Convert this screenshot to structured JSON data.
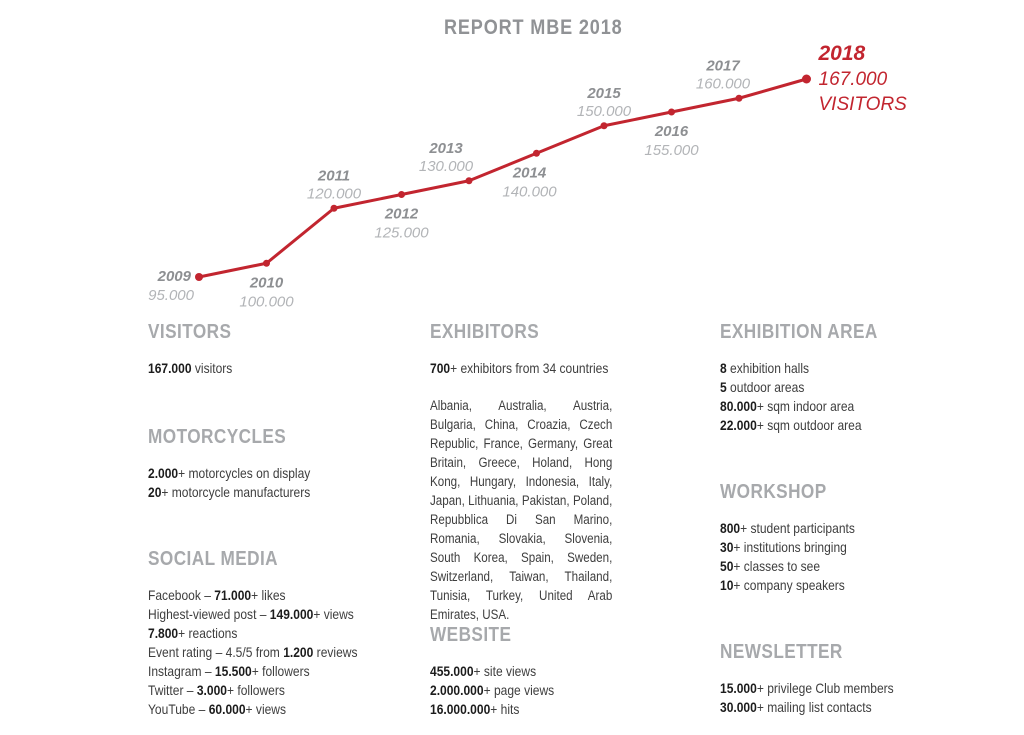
{
  "title": "REPORT MBE 2018",
  "colors": {
    "red": "#c2252f",
    "title_gray": "#909295",
    "heading_gray": "#a7a9ac",
    "year_gray": "#8d8f92",
    "value_gray": "#b2b4b7",
    "text": "#3e3e3e",
    "bold_text": "#1c1c1c"
  },
  "chart_data": {
    "type": "line",
    "title": "REPORT MBE 2018",
    "x": [
      2009,
      2010,
      2011,
      2012,
      2013,
      2014,
      2015,
      2016,
      2017,
      2018
    ],
    "values": [
      95000,
      100000,
      120000,
      125000,
      130000,
      140000,
      150000,
      155000,
      160000,
      167000
    ],
    "ylim": [
      95000,
      167000
    ],
    "grid": false,
    "legend": false,
    "line_color": "#c2252f",
    "points": [
      {
        "year": "2009",
        "label": "95.000",
        "placement": "left"
      },
      {
        "year": "2010",
        "label": "100.000",
        "placement": "below"
      },
      {
        "year": "2011",
        "label": "120.000",
        "placement": "above"
      },
      {
        "year": "2012",
        "label": "125.000",
        "placement": "below"
      },
      {
        "year": "2013",
        "label": "130.000",
        "placement": "above",
        "dx": -23
      },
      {
        "year": "2014",
        "label": "140.000",
        "placement": "below",
        "dx": -7
      },
      {
        "year": "2015",
        "label": "150.000",
        "placement": "above"
      },
      {
        "year": "2016",
        "label": "155.000",
        "placement": "below"
      },
      {
        "year": "2017",
        "label": "160.000",
        "placement": "above",
        "dx": -16
      },
      {
        "year": "2018",
        "label": "167.000",
        "sublabel": "VISITORS",
        "placement": "right",
        "highlight": true
      }
    ]
  },
  "sections": {
    "visitors": {
      "heading": "VISITORS",
      "lines": [
        [
          {
            "t": "167.000",
            "b": true
          },
          {
            "t": " visitors",
            "b": false
          }
        ]
      ]
    },
    "motorcycles": {
      "heading": "MOTORCYCLES",
      "lines": [
        [
          {
            "t": "2.000",
            "b": true
          },
          {
            "t": "+ motorcycles on display",
            "b": false
          }
        ],
        [
          {
            "t": "20",
            "b": true
          },
          {
            "t": "+ motorcycle manufacturers",
            "b": false
          }
        ]
      ]
    },
    "social_media": {
      "heading": "SOCIAL MEDIA",
      "lines": [
        [
          {
            "t": "Facebook – ",
            "b": false
          },
          {
            "t": "71.000",
            "b": true
          },
          {
            "t": "+ likes",
            "b": false
          }
        ],
        [
          {
            "t": "Highest-viewed post – ",
            "b": false
          },
          {
            "t": "149.000",
            "b": true
          },
          {
            "t": "+ views",
            "b": false
          }
        ],
        [
          {
            "t": "7.800",
            "b": true
          },
          {
            "t": "+ reactions",
            "b": false
          }
        ],
        [
          {
            "t": "Event rating – 4.5/5 from ",
            "b": false
          },
          {
            "t": "1.200",
            "b": true
          },
          {
            "t": " reviews",
            "b": false
          }
        ],
        [
          {
            "t": "Instagram – ",
            "b": false
          },
          {
            "t": "15.500",
            "b": true
          },
          {
            "t": "+ followers",
            "b": false
          }
        ],
        [
          {
            "t": "Twitter – ",
            "b": false
          },
          {
            "t": "3.000",
            "b": true
          },
          {
            "t": "+ followers",
            "b": false
          }
        ],
        [
          {
            "t": "YouTube – ",
            "b": false
          },
          {
            "t": "60.000",
            "b": true
          },
          {
            "t": "+ views",
            "b": false
          }
        ]
      ]
    },
    "exhibitors": {
      "heading": "EXHIBITORS",
      "lines": [
        [
          {
            "t": "700",
            "b": true
          },
          {
            "t": "+ exhibitors from 34 countries",
            "b": false
          }
        ]
      ],
      "paragraph": "Albania, Australia, Austria, Bulgaria, China, Croazia, Czech Republic, France, Germany, Great Britain, Greece, Holand, Hong Kong, Hungary, Indonesia, Italy, Japan, Lithuania, Pakistan, Poland, Repubblica Di San Marino, Romania, Slovakia, Slovenia, South Korea, Spain, Sweden, Switzerland, Taiwan, Thailand, Tunisia, Turkey, United Arab Emirates, USA."
    },
    "website": {
      "heading": "WEBSITE",
      "lines": [
        [
          {
            "t": "455.000",
            "b": true
          },
          {
            "t": "+ site views",
            "b": false
          }
        ],
        [
          {
            "t": "2.000.000",
            "b": true
          },
          {
            "t": "+ page views",
            "b": false
          }
        ],
        [
          {
            "t": "16.000.000",
            "b": true
          },
          {
            "t": "+ hits",
            "b": false
          }
        ]
      ]
    },
    "exhibition_area": {
      "heading": "EXHIBITION AREA",
      "lines": [
        [
          {
            "t": "8",
            "b": true
          },
          {
            "t": " exhibition halls",
            "b": false
          }
        ],
        [
          {
            "t": "5",
            "b": true
          },
          {
            "t": " outdoor areas",
            "b": false
          }
        ],
        [
          {
            "t": "80.000",
            "b": true
          },
          {
            "t": "+ sqm indoor area",
            "b": false
          }
        ],
        [
          {
            "t": "22.000",
            "b": true
          },
          {
            "t": "+ sqm outdoor area",
            "b": false
          }
        ]
      ]
    },
    "workshop": {
      "heading": "WORKSHOP",
      "lines": [
        [
          {
            "t": "800",
            "b": true
          },
          {
            "t": "+ student participants",
            "b": false
          }
        ],
        [
          {
            "t": "30",
            "b": true
          },
          {
            "t": "+ institutions bringing",
            "b": false
          }
        ],
        [
          {
            "t": "50",
            "b": true
          },
          {
            "t": "+ classes to see",
            "b": false
          }
        ],
        [
          {
            "t": "10",
            "b": true
          },
          {
            "t": "+ company speakers",
            "b": false
          }
        ]
      ]
    },
    "newsletter": {
      "heading": "NEWSLETTER",
      "lines": [
        [
          {
            "t": "15.000",
            "b": true
          },
          {
            "t": "+ privilege Club members",
            "b": false
          }
        ],
        [
          {
            "t": "30.000",
            "b": true
          },
          {
            "t": "+ mailing list contacts",
            "b": false
          }
        ]
      ]
    }
  }
}
